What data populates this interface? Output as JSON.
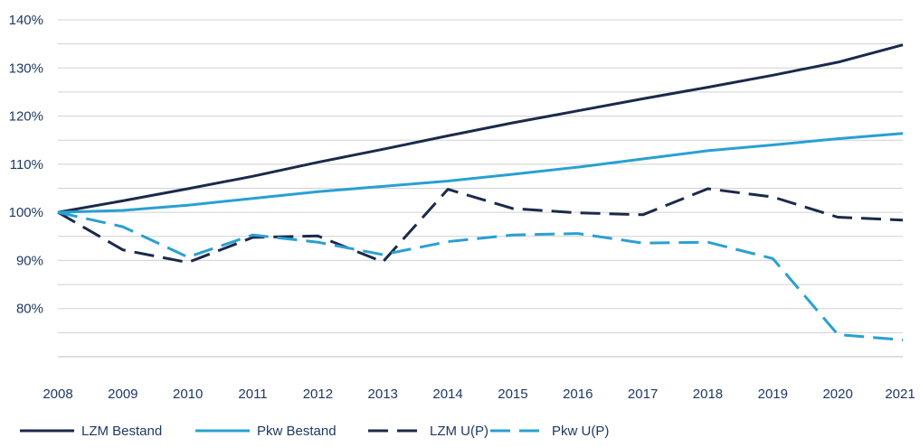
{
  "chart_data": {
    "type": "line",
    "title": "",
    "xlabel": "",
    "ylabel": "",
    "grid": true,
    "legend_position": "bottom",
    "x": [
      "2008",
      "2009",
      "2010",
      "2011",
      "2012",
      "2013",
      "2014",
      "2015",
      "2016",
      "2017",
      "2018",
      "2019",
      "2020",
      "2021"
    ],
    "ylim": [
      70,
      140
    ],
    "yticks": [
      80,
      90,
      100,
      110,
      120,
      130,
      140
    ],
    "ytick_labels": [
      "80%",
      "90%",
      "100%",
      "110%",
      "120%",
      "130%",
      "140%"
    ],
    "series": [
      {
        "name": "LZM Bestand",
        "color": "#1b2a4a",
        "dash": "solid",
        "values": [
          100,
          102.4,
          104.9,
          107.5,
          110.4,
          113.1,
          115.9,
          118.6,
          121.1,
          123.6,
          126.0,
          128.5,
          131.2,
          134.8
        ]
      },
      {
        "name": "Pkw Bestand",
        "color": "#2aa0d2",
        "dash": "solid",
        "values": [
          100,
          100.4,
          101.5,
          102.9,
          104.3,
          105.4,
          106.5,
          107.9,
          109.4,
          111.1,
          112.8,
          114.0,
          115.3,
          116.4
        ]
      },
      {
        "name": "LZM U(P)",
        "color": "#1b2a4a",
        "dash": "dashed",
        "values": [
          100,
          92.2,
          89.6,
          94.8,
          95.1,
          89.7,
          104.8,
          100.8,
          99.9,
          99.5,
          104.9,
          103.2,
          99.0,
          98.4
        ]
      },
      {
        "name": "Pkw U(P)",
        "color": "#2aa0d2",
        "dash": "dashed",
        "values": [
          100,
          97.0,
          90.7,
          95.3,
          93.8,
          91.2,
          93.9,
          95.3,
          95.6,
          93.6,
          93.8,
          90.4,
          74.6,
          73.5
        ]
      }
    ]
  }
}
